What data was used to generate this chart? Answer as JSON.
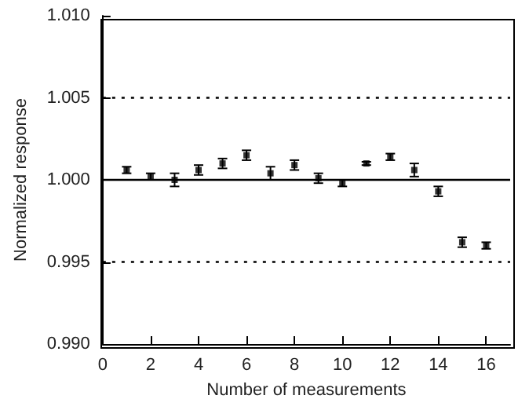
{
  "chart_data": {
    "type": "scatter",
    "xlabel": "Number of measurements",
    "ylabel": "Normalized response",
    "x": [
      1,
      2,
      3,
      4,
      5,
      6,
      7,
      8,
      9,
      10,
      11,
      12,
      13,
      14,
      15,
      16
    ],
    "values": [
      1.0006,
      1.0002,
      1.0,
      1.0006,
      1.001,
      1.0015,
      1.0004,
      1.0009,
      1.0001,
      0.9998,
      1.001,
      1.0014,
      1.0006,
      0.9993,
      0.9962,
      0.996
    ],
    "errors": [
      0.0002,
      0.0002,
      0.0004,
      0.0003,
      0.0003,
      0.0003,
      0.0004,
      0.0003,
      0.0003,
      0.0002,
      0.0001,
      0.0002,
      0.0004,
      0.0003,
      0.0003,
      0.0002
    ],
    "color": "#000000",
    "marker": "square",
    "xlim": [
      0,
      17
    ],
    "xticks": [
      0,
      2,
      4,
      6,
      8,
      10,
      12,
      14,
      16
    ],
    "ylim": [
      0.99,
      1.01
    ],
    "yticks": [
      {
        "value": 0.99,
        "label": "0.990"
      },
      {
        "value": 0.995,
        "label": "0.995"
      },
      {
        "value": 1.0,
        "label": "1.000"
      },
      {
        "value": 1.005,
        "label": "1.005"
      },
      {
        "value": 1.01,
        "label": "1.010"
      }
    ],
    "ref_lines": [
      {
        "axis": "y",
        "value": 1.0,
        "line_style": "solid"
      },
      {
        "axis": "y",
        "value": 1.005,
        "line_style": "dotted"
      },
      {
        "axis": "y",
        "value": 0.995,
        "line_style": "dotted"
      }
    ],
    "grid": false
  }
}
